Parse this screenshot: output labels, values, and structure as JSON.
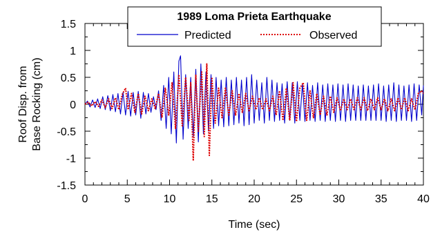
{
  "chart_data": {
    "type": "line",
    "legend_title": "1989 Loma Prieta Earthquake",
    "xlabel": "Time (sec)",
    "ylabel_lines": [
      "Roof Disp. from",
      "Base Rocking (cm)"
    ],
    "xlim": [
      0,
      40
    ],
    "ylim": [
      -1.5,
      1.5
    ],
    "xticks": [
      0,
      5,
      10,
      15,
      20,
      25,
      30,
      35,
      40
    ],
    "yticks": [
      -1.5,
      -1,
      -0.5,
      0,
      0.5,
      1,
      1.5
    ],
    "xtick_labels": [
      "0",
      "5",
      "10",
      "15",
      "20",
      "25",
      "30",
      "35",
      "40"
    ],
    "ytick_labels": [
      "-1.5",
      "-1",
      "-0.5",
      "0",
      "0.5",
      "1",
      "1.5"
    ],
    "grid": false,
    "legend_position": "top-right",
    "series": [
      {
        "name": "Predicted",
        "color": "#0000cc",
        "style": "solid",
        "points": [
          [
            0.0,
            0.0
          ],
          [
            0.3,
            0.06
          ],
          [
            0.6,
            -0.05
          ],
          [
            0.9,
            0.08
          ],
          [
            1.2,
            -0.06
          ],
          [
            1.5,
            0.1
          ],
          [
            1.8,
            -0.08
          ],
          [
            2.1,
            0.14
          ],
          [
            2.4,
            -0.1
          ],
          [
            2.7,
            0.16
          ],
          [
            3.0,
            -0.12
          ],
          [
            3.3,
            0.18
          ],
          [
            3.6,
            -0.14
          ],
          [
            3.9,
            0.2
          ],
          [
            4.2,
            -0.18
          ],
          [
            4.5,
            0.22
          ],
          [
            4.8,
            -0.2
          ],
          [
            5.1,
            0.24
          ],
          [
            5.4,
            -0.22
          ],
          [
            5.7,
            0.22
          ],
          [
            6.0,
            -0.2
          ],
          [
            6.3,
            0.24
          ],
          [
            6.6,
            -0.26
          ],
          [
            6.9,
            0.22
          ],
          [
            7.2,
            -0.18
          ],
          [
            7.5,
            0.2
          ],
          [
            7.8,
            -0.15
          ],
          [
            8.1,
            0.14
          ],
          [
            8.4,
            -0.1
          ],
          [
            8.7,
            0.25
          ],
          [
            9.0,
            -0.3
          ],
          [
            9.3,
            0.35
          ],
          [
            9.6,
            -0.45
          ],
          [
            9.9,
            0.5
          ],
          [
            10.2,
            -0.55
          ],
          [
            10.5,
            0.6
          ],
          [
            10.8,
            -0.72
          ],
          [
            11.1,
            0.8
          ],
          [
            11.3,
            0.9
          ],
          [
            11.6,
            -0.65
          ],
          [
            11.9,
            0.55
          ],
          [
            12.2,
            -0.45
          ],
          [
            12.5,
            0.5
          ],
          [
            12.8,
            -0.6
          ],
          [
            13.1,
            0.65
          ],
          [
            13.4,
            -0.7
          ],
          [
            13.7,
            0.75
          ],
          [
            14.0,
            -0.55
          ],
          [
            14.3,
            0.6
          ],
          [
            14.6,
            -0.5
          ],
          [
            14.9,
            0.55
          ],
          [
            15.2,
            -0.45
          ],
          [
            15.5,
            0.5
          ],
          [
            15.8,
            -0.4
          ],
          [
            16.1,
            0.45
          ],
          [
            16.4,
            -0.42
          ],
          [
            16.7,
            0.5
          ],
          [
            17.0,
            -0.4
          ],
          [
            17.3,
            0.45
          ],
          [
            17.6,
            -0.38
          ],
          [
            17.9,
            0.5
          ],
          [
            18.2,
            -0.35
          ],
          [
            18.5,
            0.45
          ],
          [
            18.8,
            -0.4
          ],
          [
            19.1,
            0.5
          ],
          [
            19.4,
            -0.38
          ],
          [
            19.7,
            0.55
          ],
          [
            20.0,
            -0.35
          ],
          [
            20.3,
            0.45
          ],
          [
            20.6,
            -0.3
          ],
          [
            20.9,
            0.4
          ],
          [
            21.2,
            -0.35
          ],
          [
            21.5,
            0.5
          ],
          [
            21.8,
            -0.3
          ],
          [
            22.1,
            0.45
          ],
          [
            22.4,
            -0.32
          ],
          [
            22.7,
            0.4
          ],
          [
            23.0,
            -0.3
          ],
          [
            23.3,
            0.38
          ],
          [
            23.6,
            -0.35
          ],
          [
            23.9,
            0.42
          ],
          [
            24.2,
            -0.3
          ],
          [
            24.5,
            0.4
          ],
          [
            24.8,
            -0.35
          ],
          [
            25.1,
            0.42
          ],
          [
            25.4,
            -0.3
          ],
          [
            25.7,
            0.38
          ],
          [
            26.0,
            -0.32
          ],
          [
            26.3,
            0.4
          ],
          [
            26.6,
            -0.3
          ],
          [
            26.9,
            0.35
          ],
          [
            27.2,
            -0.32
          ],
          [
            27.5,
            0.4
          ],
          [
            27.8,
            -0.3
          ],
          [
            28.1,
            0.36
          ],
          [
            28.4,
            -0.32
          ],
          [
            28.7,
            0.38
          ],
          [
            29.0,
            -0.3
          ],
          [
            29.3,
            0.36
          ],
          [
            29.6,
            -0.32
          ],
          [
            29.9,
            0.38
          ],
          [
            30.2,
            -0.3
          ],
          [
            30.5,
            0.36
          ],
          [
            30.8,
            -0.32
          ],
          [
            31.1,
            0.38
          ],
          [
            31.4,
            -0.3
          ],
          [
            31.7,
            0.36
          ],
          [
            32.0,
            -0.3
          ],
          [
            32.3,
            0.34
          ],
          [
            32.6,
            -0.3
          ],
          [
            32.9,
            0.36
          ],
          [
            33.2,
            -0.3
          ],
          [
            33.5,
            0.34
          ],
          [
            33.8,
            -0.3
          ],
          [
            34.1,
            0.36
          ],
          [
            34.4,
            -0.3
          ],
          [
            34.7,
            0.38
          ],
          [
            35.0,
            -0.3
          ],
          [
            35.3,
            0.34
          ],
          [
            35.6,
            -0.32
          ],
          [
            35.9,
            0.36
          ],
          [
            36.2,
            -0.3
          ],
          [
            36.5,
            0.4
          ],
          [
            36.8,
            -0.32
          ],
          [
            37.1,
            0.36
          ],
          [
            37.4,
            -0.3
          ],
          [
            37.7,
            0.34
          ],
          [
            38.0,
            -0.3
          ],
          [
            38.3,
            0.36
          ],
          [
            38.6,
            -0.32
          ],
          [
            38.9,
            0.38
          ],
          [
            39.2,
            -0.3
          ],
          [
            39.5,
            0.36
          ],
          [
            39.8,
            -0.2
          ],
          [
            40.0,
            0.35
          ]
        ]
      },
      {
        "name": "Observed",
        "color": "#dd0000",
        "style": "dotted",
        "points": [
          [
            0.0,
            0.0
          ],
          [
            0.4,
            0.04
          ],
          [
            0.8,
            -0.03
          ],
          [
            1.2,
            0.05
          ],
          [
            1.6,
            -0.04
          ],
          [
            2.0,
            0.08
          ],
          [
            2.4,
            -0.06
          ],
          [
            2.8,
            0.1
          ],
          [
            3.2,
            -0.08
          ],
          [
            3.6,
            0.12
          ],
          [
            4.0,
            -0.1
          ],
          [
            4.4,
            0.18
          ],
          [
            4.8,
            0.3
          ],
          [
            5.1,
            -0.1
          ],
          [
            5.5,
            0.2
          ],
          [
            5.9,
            -0.15
          ],
          [
            6.3,
            0.2
          ],
          [
            6.7,
            -0.18
          ],
          [
            7.1,
            0.15
          ],
          [
            7.5,
            -0.12
          ],
          [
            7.9,
            0.1
          ],
          [
            8.3,
            -0.08
          ],
          [
            8.7,
            0.2
          ],
          [
            9.1,
            -0.25
          ],
          [
            9.5,
            0.3
          ],
          [
            9.9,
            -0.2
          ],
          [
            10.3,
            0.4
          ],
          [
            10.7,
            -0.45
          ],
          [
            11.1,
            0.55
          ],
          [
            11.5,
            -0.4
          ],
          [
            11.9,
            0.5
          ],
          [
            12.3,
            -0.3
          ],
          [
            12.5,
            0.4
          ],
          [
            12.8,
            -1.05
          ],
          [
            13.1,
            0.55
          ],
          [
            13.4,
            -0.5
          ],
          [
            13.8,
            0.6
          ],
          [
            14.1,
            -0.6
          ],
          [
            14.4,
            0.75
          ],
          [
            14.7,
            -0.95
          ],
          [
            15.0,
            0.5
          ],
          [
            15.4,
            -0.35
          ],
          [
            15.8,
            0.3
          ],
          [
            16.2,
            -0.25
          ],
          [
            16.6,
            0.3
          ],
          [
            17.0,
            -0.2
          ],
          [
            17.4,
            0.25
          ],
          [
            17.8,
            -0.2
          ],
          [
            18.2,
            0.2
          ],
          [
            18.6,
            -0.15
          ],
          [
            19.0,
            0.2
          ],
          [
            19.4,
            -0.12
          ],
          [
            19.8,
            0.15
          ],
          [
            20.2,
            -0.1
          ],
          [
            20.6,
            0.12
          ],
          [
            21.0,
            -0.1
          ],
          [
            21.4,
            0.1
          ],
          [
            21.8,
            -0.12
          ],
          [
            22.2,
            0.15
          ],
          [
            22.6,
            -0.2
          ],
          [
            23.0,
            0.25
          ],
          [
            23.4,
            -0.3
          ],
          [
            23.8,
            0.3
          ],
          [
            24.2,
            -0.3
          ],
          [
            24.6,
            0.4
          ],
          [
            25.0,
            -0.32
          ],
          [
            25.4,
            0.3
          ],
          [
            25.8,
            0.4
          ],
          [
            26.2,
            -0.3
          ],
          [
            26.6,
            0.25
          ],
          [
            27.0,
            -0.25
          ],
          [
            27.4,
            0.2
          ],
          [
            27.8,
            -0.2
          ],
          [
            28.2,
            0.15
          ],
          [
            28.6,
            -0.2
          ],
          [
            29.0,
            0.15
          ],
          [
            29.4,
            -0.15
          ],
          [
            29.8,
            0.12
          ],
          [
            30.2,
            -0.12
          ],
          [
            30.6,
            0.1
          ],
          [
            31.0,
            -0.1
          ],
          [
            31.4,
            0.1
          ],
          [
            31.8,
            -0.1
          ],
          [
            32.2,
            0.12
          ],
          [
            32.6,
            -0.1
          ],
          [
            33.0,
            0.12
          ],
          [
            33.4,
            -0.12
          ],
          [
            33.8,
            0.1
          ],
          [
            34.2,
            -0.1
          ],
          [
            34.6,
            0.12
          ],
          [
            35.0,
            -0.1
          ],
          [
            35.4,
            0.1
          ],
          [
            35.8,
            -0.12
          ],
          [
            36.2,
            0.1
          ],
          [
            36.6,
            -0.12
          ],
          [
            37.0,
            0.12
          ],
          [
            37.4,
            -0.1
          ],
          [
            37.8,
            0.12
          ],
          [
            38.2,
            -0.12
          ],
          [
            38.6,
            0.1
          ],
          [
            39.0,
            -0.1
          ],
          [
            39.4,
            0.2
          ],
          [
            39.8,
            0.25
          ],
          [
            40.0,
            0.2
          ]
        ]
      }
    ]
  }
}
